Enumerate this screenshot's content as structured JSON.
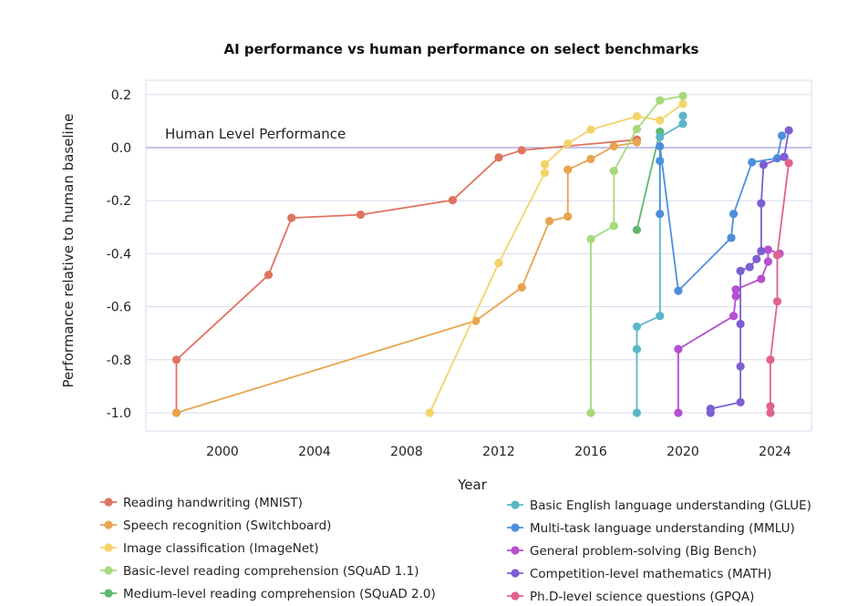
{
  "chart_data": {
    "type": "line",
    "title": "AI performance vs human performance on select benchmarks",
    "xlabel": "Year",
    "ylabel": "Performance relative to human baseline",
    "xlim": [
      1997,
      2025.5
    ],
    "ylim": [
      -1.07,
      0.25
    ],
    "xticks": [
      2000,
      2004,
      2008,
      2012,
      2016,
      2020,
      2024
    ],
    "xtick_labels": [
      "2000",
      "2004",
      "2008",
      "2012",
      "2016",
      "2020",
      "2024"
    ],
    "yticks": [
      0.2,
      0.0,
      -0.2,
      -0.4,
      -0.6,
      -0.8,
      -1.0
    ],
    "ytick_labels": [
      "0.2",
      "0.0",
      "-0.2",
      "-0.4",
      "-0.6",
      "-0.8",
      "-1.0"
    ],
    "grid": true,
    "reference_line": {
      "y": 0.0,
      "label": "Human Level Performance",
      "color": "#9f9fdc"
    },
    "legend_position": "bottom",
    "series": [
      {
        "name": "Reading handwriting (MNIST)",
        "color": "#e0735f",
        "points": [
          [
            1998,
            -1.0
          ],
          [
            1998,
            -0.8
          ],
          [
            2002,
            -0.48
          ],
          [
            2003,
            -0.265
          ],
          [
            2006,
            -0.253
          ],
          [
            2010,
            -0.198
          ],
          [
            2012,
            -0.037
          ],
          [
            2013,
            -0.01
          ],
          [
            2018,
            0.03
          ]
        ]
      },
      {
        "name": "Speech recognition (Switchboard)",
        "color": "#e8a44f",
        "points": [
          [
            1998,
            -1.0
          ],
          [
            2011,
            -0.653
          ],
          [
            2013,
            -0.527
          ],
          [
            2014.2,
            -0.277
          ],
          [
            2015,
            -0.26
          ],
          [
            2015,
            -0.083
          ],
          [
            2016,
            -0.043
          ],
          [
            2017,
            0.005
          ],
          [
            2018,
            0.02
          ]
        ]
      },
      {
        "name": "Image classification (ImageNet)",
        "color": "#f5d36a",
        "points": [
          [
            2009,
            -1.0
          ],
          [
            2012,
            -0.435
          ],
          [
            2014,
            -0.095
          ],
          [
            2014,
            -0.063
          ],
          [
            2015,
            0.015
          ],
          [
            2016,
            0.068
          ],
          [
            2018,
            0.118
          ],
          [
            2019,
            0.103
          ],
          [
            2020,
            0.165
          ]
        ]
      },
      {
        "name": "Basic-level reading comprehension (SQuAD 1.1)",
        "color": "#a6d97c",
        "points": [
          [
            2016,
            -1.0
          ],
          [
            2016,
            -0.345
          ],
          [
            2017,
            -0.295
          ],
          [
            2017,
            -0.088
          ],
          [
            2018,
            0.07
          ],
          [
            2019,
            0.178
          ],
          [
            2020,
            0.195
          ]
        ]
      },
      {
        "name": "Medium-level reading comprehension (SQuAD 2.0)",
        "color": "#5fb870",
        "points": [
          [
            2018,
            -0.31
          ],
          [
            2019,
            0.06
          ]
        ]
      },
      {
        "name": "Basic English language understanding (GLUE)",
        "color": "#5bb6c8",
        "points": [
          [
            2018,
            -1.0
          ],
          [
            2018,
            -0.76
          ],
          [
            2018,
            -0.675
          ],
          [
            2019,
            -0.635
          ],
          [
            2019,
            0.04
          ],
          [
            2020,
            0.09
          ],
          [
            2020,
            0.12
          ]
        ]
      },
      {
        "name": "Multi-task language understanding (MMLU)",
        "color": "#4e8fdb",
        "points": [
          [
            2019,
            -0.25
          ],
          [
            2019,
            -0.05
          ],
          [
            2019,
            0.005
          ],
          [
            2019.8,
            -0.54
          ],
          [
            2022.1,
            -0.34
          ],
          [
            2022.2,
            -0.25
          ],
          [
            2023,
            -0.055
          ],
          [
            2024.1,
            -0.04
          ],
          [
            2024.3,
            0.045
          ]
        ]
      },
      {
        "name": "General problem-solving (Big Bench)",
        "color": "#b54fd0",
        "points": [
          [
            2019.8,
            -1.0
          ],
          [
            2019.8,
            -0.76
          ],
          [
            2022.2,
            -0.635
          ],
          [
            2022.3,
            -0.56
          ],
          [
            2022.3,
            -0.535
          ],
          [
            2023.4,
            -0.495
          ],
          [
            2023.7,
            -0.43
          ],
          [
            2023.7,
            -0.385
          ],
          [
            2024.2,
            -0.4
          ]
        ]
      },
      {
        "name": "Competition-level mathematics (MATH)",
        "color": "#7b5fd3",
        "points": [
          [
            2021.2,
            -1.0
          ],
          [
            2021.2,
            -0.985
          ],
          [
            2022.5,
            -0.96
          ],
          [
            2022.5,
            -0.825
          ],
          [
            2022.5,
            -0.665
          ],
          [
            2022.5,
            -0.465
          ],
          [
            2022.9,
            -0.45
          ],
          [
            2023.2,
            -0.42
          ],
          [
            2023.4,
            -0.39
          ],
          [
            2023.4,
            -0.21
          ],
          [
            2023.5,
            -0.065
          ],
          [
            2024.4,
            -0.035
          ],
          [
            2024.6,
            0.065
          ]
        ]
      },
      {
        "name": "Ph.D-level science questions (GPQA)",
        "color": "#e0628f",
        "points": [
          [
            2023.8,
            -1.0
          ],
          [
            2023.8,
            -0.975
          ],
          [
            2023.8,
            -0.8
          ],
          [
            2024.1,
            -0.58
          ],
          [
            2024.1,
            -0.405
          ],
          [
            2024.6,
            -0.058
          ]
        ]
      }
    ]
  }
}
